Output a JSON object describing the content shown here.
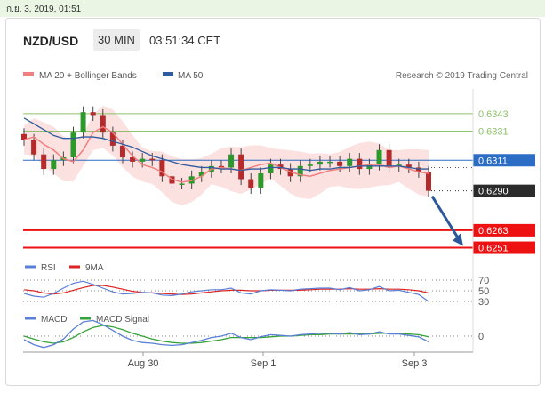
{
  "timestamp": "ก.ย. 3, 2019, 01:51",
  "header": {
    "pair": "NZD/USD",
    "timeframe": "30 MIN",
    "time": "03:51:34 CET"
  },
  "colors": {
    "bollinger": "#f08080",
    "bollinger_band": "#fcdcdc",
    "ma50": "#2f5c9e",
    "level_green": "#8dc16b",
    "level_blue": "#2b6cc4",
    "level_red": "#ee1111",
    "arrow": "#2b5899",
    "bull": "#2b9a2b",
    "bear": "#b52b2b",
    "rsi": "#5a7fd6",
    "rsi_ma": "#dd2222",
    "macd": "#5a7fd6",
    "macd_signal": "#37a237"
  },
  "chart_data": {
    "type": "line",
    "title": "NZD/USD 30 MIN",
    "legend": {
      "ma_bollinger": "MA 20 + Bollinger Bands",
      "ma50": "MA 50",
      "source": "Research © 2019 Trading Central"
    },
    "x_ticks": [
      "Aug 30",
      "Sep 1",
      "Sep 3"
    ],
    "ylim": [
      0.6244,
      0.636
    ],
    "levels": [
      {
        "value": 0.6343,
        "label": "0.6343",
        "kind": "resistance"
      },
      {
        "value": 0.6331,
        "label": "0.6331",
        "kind": "resistance"
      },
      {
        "value": 0.6311,
        "label": "0.6311",
        "kind": "pivot"
      },
      {
        "value": 0.6263,
        "label": "0.6263",
        "kind": "support"
      },
      {
        "value": 0.6251,
        "label": "0.6251",
        "kind": "support"
      }
    ],
    "last_price": {
      "value": 0.629,
      "label": "0.6290"
    },
    "series": [
      {
        "name": "MA 20 + Bollinger Bands",
        "values": [
          0.6325,
          0.6327,
          0.6322,
          0.6318,
          0.6312,
          0.631,
          0.6318,
          0.633,
          0.6334,
          0.633,
          0.6322,
          0.6314,
          0.6308,
          0.6306,
          0.6303,
          0.6298,
          0.6296,
          0.6297,
          0.63,
          0.6305,
          0.6306,
          0.6305,
          0.6304,
          0.6306,
          0.6308,
          0.6309,
          0.6306,
          0.6303,
          0.6301,
          0.63,
          0.6302,
          0.6304,
          0.6305,
          0.6306,
          0.6307,
          0.6308,
          0.6308,
          0.6306,
          0.6307,
          0.6305,
          0.6303,
          0.6302
        ]
      },
      {
        "name": "MA 50",
        "values": [
          0.634,
          0.6336,
          0.6332,
          0.6328,
          0.6326,
          0.6326,
          0.6327,
          0.6327,
          0.6326,
          0.6324,
          0.6322,
          0.632,
          0.6317,
          0.6314,
          0.6312,
          0.631,
          0.6308,
          0.6307,
          0.6306,
          0.6306,
          0.6305,
          0.6305,
          0.6304,
          0.6305,
          0.6305,
          0.6306,
          0.6306,
          0.6305,
          0.6305,
          0.6304,
          0.6305,
          0.6305,
          0.6306,
          0.6306,
          0.6307,
          0.6307,
          0.6307,
          0.6307,
          0.6307,
          0.6306,
          0.6305,
          0.6305
        ]
      }
    ],
    "close": [
      0.6325,
      0.6315,
      0.6305,
      0.6311,
      0.6313,
      0.633,
      0.6344,
      0.6342,
      0.633,
      0.6321,
      0.6313,
      0.631,
      0.6312,
      0.6311,
      0.63,
      0.6295,
      0.6295,
      0.63,
      0.6303,
      0.6307,
      0.6306,
      0.6315,
      0.6298,
      0.6292,
      0.6302,
      0.6308,
      0.6305,
      0.63,
      0.6307,
      0.6308,
      0.631,
      0.631,
      0.6307,
      0.6312,
      0.6305,
      0.6308,
      0.6318,
      0.6307,
      0.6308,
      0.6306,
      0.6303,
      0.629
    ],
    "rsi": {
      "label": "RSI",
      "ma_label": "9MA",
      "ticks": [
        "70",
        "50",
        "30"
      ],
      "values": [
        45,
        40,
        38,
        45,
        55,
        64,
        68,
        62,
        55,
        48,
        44,
        45,
        47,
        46,
        42,
        41,
        44,
        48,
        50,
        52,
        52,
        55,
        46,
        44,
        50,
        52,
        51,
        50,
        53,
        54,
        55,
        55,
        52,
        56,
        50,
        52,
        58,
        50,
        51,
        47,
        43,
        30
      ],
      "ma_values": [
        52,
        50,
        46,
        44,
        46,
        51,
        56,
        60,
        60,
        57,
        53,
        49,
        47,
        46,
        45,
        44,
        43,
        44,
        46,
        48,
        50,
        51,
        51,
        50,
        50,
        51,
        51,
        51,
        51,
        52,
        53,
        53,
        53,
        54,
        53,
        53,
        54,
        53,
        53,
        52,
        50,
        46
      ]
    },
    "macd": {
      "label": "MACD",
      "signal_label": "MACD Signal",
      "zero_label": "0",
      "values": [
        -0.0005,
        -0.0012,
        -0.0016,
        -0.0012,
        -0.0004,
        0.001,
        0.002,
        0.0022,
        0.0016,
        0.0008,
        0.0,
        -0.0006,
        -0.0009,
        -0.001,
        -0.0012,
        -0.0013,
        -0.0012,
        -0.0009,
        -0.0006,
        -0.0002,
        0.0,
        0.0004,
        -0.0002,
        -0.0005,
        -0.0001,
        0.0002,
        0.0001,
        0.0,
        0.0002,
        0.0003,
        0.0004,
        0.0004,
        0.0003,
        0.0005,
        0.0002,
        0.0003,
        0.0006,
        0.0003,
        0.0003,
        0.0001,
        -0.0001,
        -0.0008
      ],
      "signal_values": [
        0.0,
        -0.0004,
        -0.0008,
        -0.001,
        -0.0008,
        -0.0002,
        0.0006,
        0.0012,
        0.0015,
        0.0013,
        0.0009,
        0.0004,
        0.0,
        -0.0004,
        -0.0007,
        -0.0009,
        -0.001,
        -0.001,
        -0.0009,
        -0.0007,
        -0.0005,
        -0.0002,
        -0.0002,
        -0.0002,
        -0.0002,
        -0.0001,
        0.0,
        0.0,
        0.0001,
        0.0002,
        0.0002,
        0.0003,
        0.0003,
        0.0003,
        0.0003,
        0.0003,
        0.0004,
        0.0004,
        0.0004,
        0.0003,
        0.0002,
        -0.0001
      ]
    }
  }
}
